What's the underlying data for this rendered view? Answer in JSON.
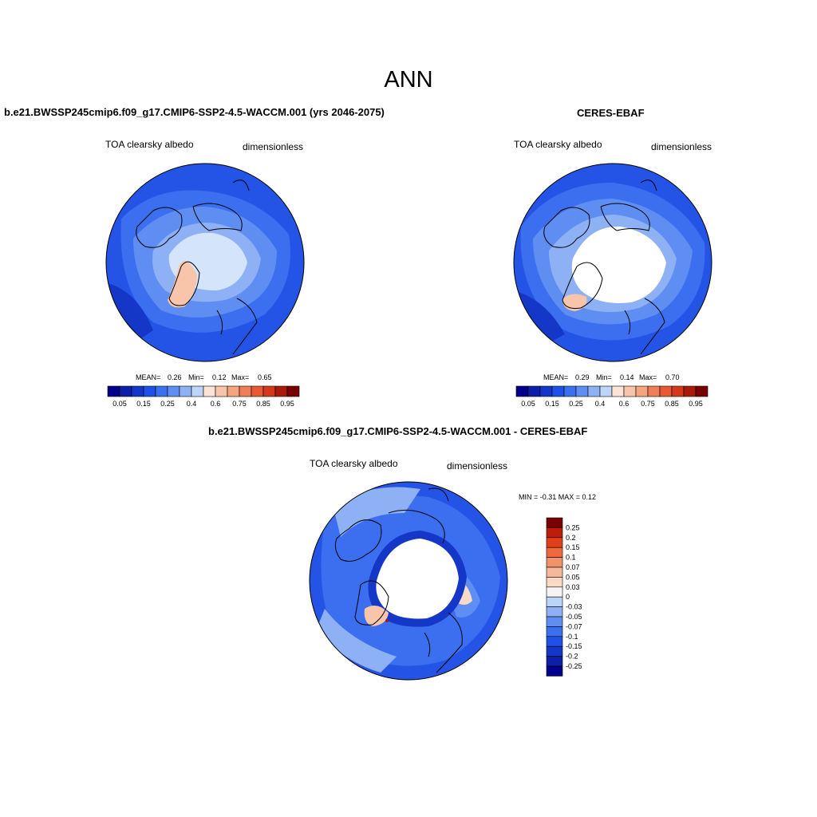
{
  "figure": {
    "title": "ANN"
  },
  "panels": {
    "model": {
      "title": "b.e21.BWSSP245cmip6.f09_g17.CMIP6-SSP2-4.5-WACCM.001 (yrs 2046-2075)",
      "variable": "TOA clearsky albedo",
      "units": "dimensionless",
      "stats": {
        "mean_label": "MEAN=",
        "mean": "0.26",
        "min_label": "Min=",
        "min": "0.12",
        "max_label": "Max=",
        "max": "0.65"
      }
    },
    "obs": {
      "title": "CERES-EBAF",
      "variable": "TOA clearsky albedo",
      "units": "dimensionless",
      "stats": {
        "mean_label": "MEAN=",
        "mean": "0.29",
        "min_label": "Min=",
        "min": "0.14",
        "max_label": "Max=",
        "max": "0.70"
      }
    },
    "diff": {
      "title": "b.e21.BWSSP245cmip6.f09_g17.CMIP6-SSP2-4.5-WACCM.001 - CERES-EBAF",
      "variable": "TOA clearsky albedo",
      "units": "dimensionless",
      "minmax": "MIN =  -0.31 MAX =   0.12"
    }
  },
  "colorbars": {
    "abs_colors": [
      "#00008c",
      "#0b1fa8",
      "#1437c8",
      "#2051e6",
      "#3b6ff0",
      "#5f8ef2",
      "#8db1f4",
      "#bcd4f8",
      "#fbe3d6",
      "#f8c4aa",
      "#f4a47f",
      "#ef7f57",
      "#e85a33",
      "#d2381b",
      "#a91a0a",
      "#7a0000"
    ],
    "abs_labels": [
      "0.05",
      "0.15",
      "0.25",
      "0.4",
      "0.6",
      "0.75",
      "0.85",
      "0.95"
    ],
    "diff_colors": [
      "#7a0000",
      "#c01c0a",
      "#e2401c",
      "#ee6a3c",
      "#f29268",
      "#f6b898",
      "#fad9c6",
      "#f4f4f4",
      "#bcd4f8",
      "#8db1f4",
      "#5f8ef2",
      "#3b6ff0",
      "#2051e6",
      "#1437c8",
      "#0b1fa8",
      "#00008c"
    ],
    "diff_labels": [
      "0.25",
      "0.2",
      "0.15",
      "0.1",
      "0.07",
      "0.05",
      "0.03",
      "0",
      "-0.03",
      "-0.05",
      "-0.07",
      "-0.1",
      "-0.15",
      "-0.2",
      "-0.25"
    ]
  }
}
